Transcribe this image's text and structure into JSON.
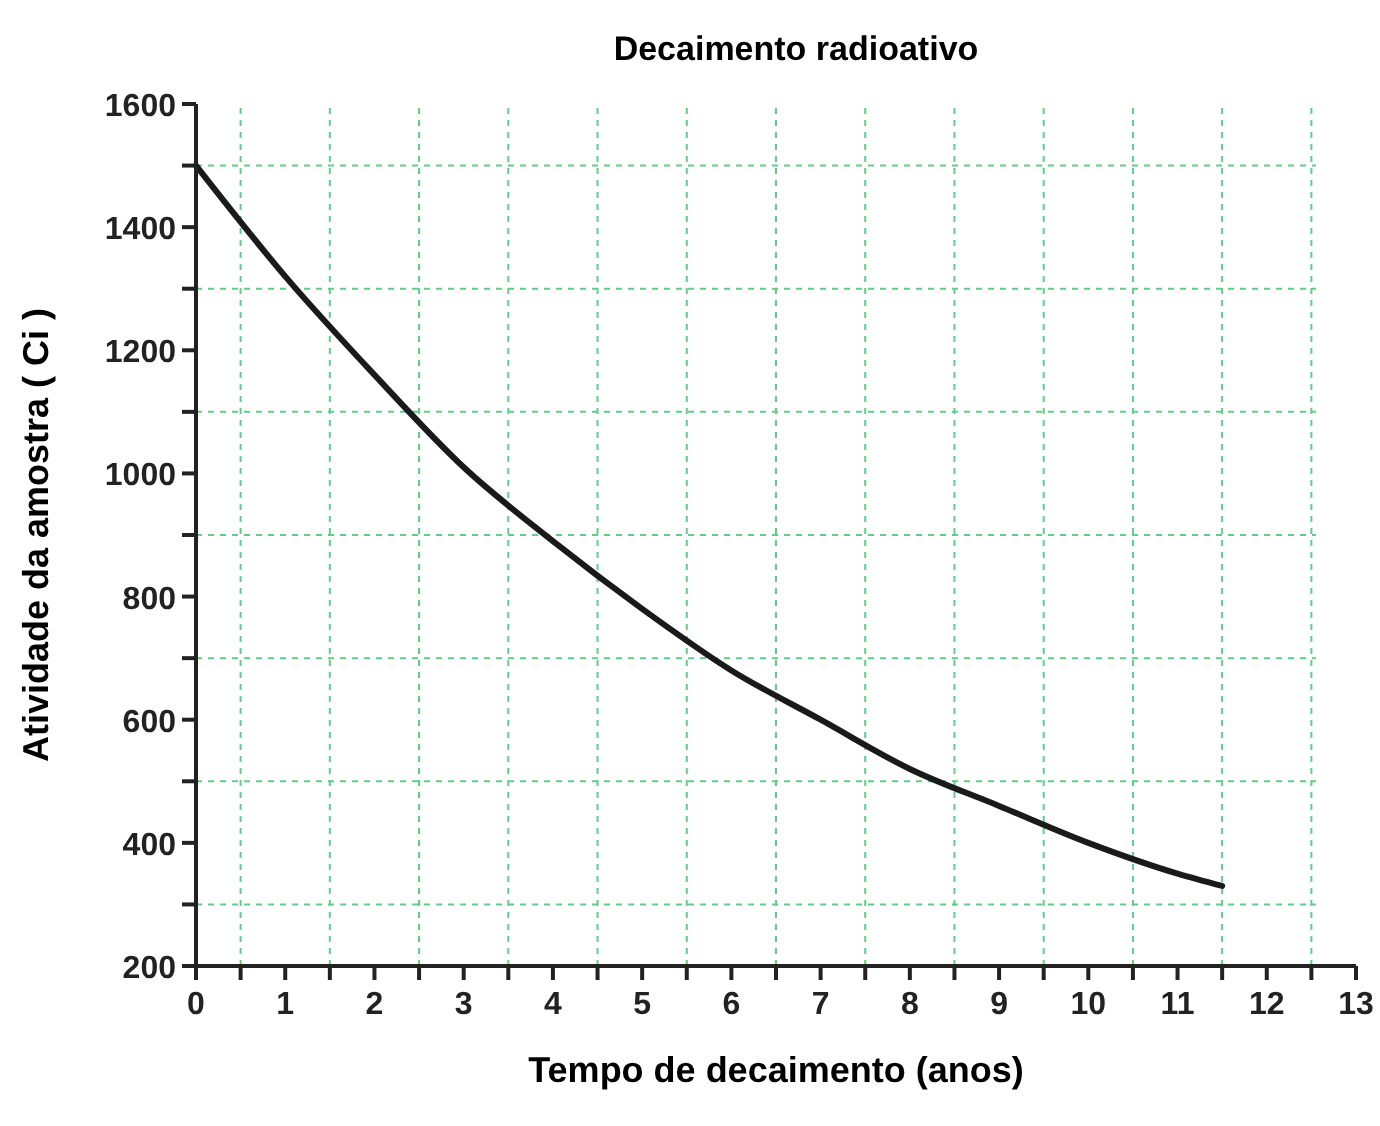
{
  "chart_data": {
    "type": "line",
    "title": "Decaimento radioativo",
    "xlabel": "Tempo de decaimento (anos)",
    "ylabel": "Atividade da amostra ( Ci )",
    "x": [
      0,
      1,
      2,
      3,
      4,
      5,
      6,
      7,
      8,
      9,
      10,
      11,
      11.5
    ],
    "series": [
      {
        "color": "#1a1a1a",
        "values": [
          1500,
          1320,
          1160,
          1010,
          890,
          780,
          680,
          600,
          520,
          460,
          400,
          350,
          330
        ]
      }
    ],
    "xlim": [
      0,
      13
    ],
    "xticks": [
      0,
      {
        "value": 0.5,
        "label": null
      },
      1,
      {
        "value": 1.5,
        "label": null
      },
      2,
      {
        "value": 2.5,
        "label": null
      },
      3,
      {
        "value": 3.5,
        "label": null
      },
      4,
      {
        "value": 4.5,
        "label": null
      },
      5,
      {
        "value": 5.5,
        "label": null
      },
      6,
      {
        "value": 6.5,
        "label": null
      },
      7,
      {
        "value": 7.5,
        "label": null
      },
      8,
      {
        "value": 8.5,
        "label": null
      },
      9,
      {
        "value": 9.5,
        "label": null
      },
      10,
      {
        "value": 10.5,
        "label": null
      },
      11,
      {
        "value": 11.5,
        "label": null
      },
      12,
      {
        "value": 12.5,
        "label": null
      },
      13
    ],
    "ylim": [
      200,
      1600
    ],
    "yticks": [
      200,
      {
        "value": 300,
        "label": null
      },
      400,
      {
        "value": 500,
        "label": null
      },
      600,
      {
        "value": 700,
        "label": null
      },
      800,
      {
        "value": 900,
        "label": null
      },
      1000,
      {
        "value": 1100,
        "label": null
      },
      1200,
      {
        "value": 1300,
        "label": null
      },
      1400,
      {
        "value": 1500,
        "label": null
      },
      1600
    ],
    "grid": true,
    "marker": "none",
    "line_style": "solid"
  }
}
